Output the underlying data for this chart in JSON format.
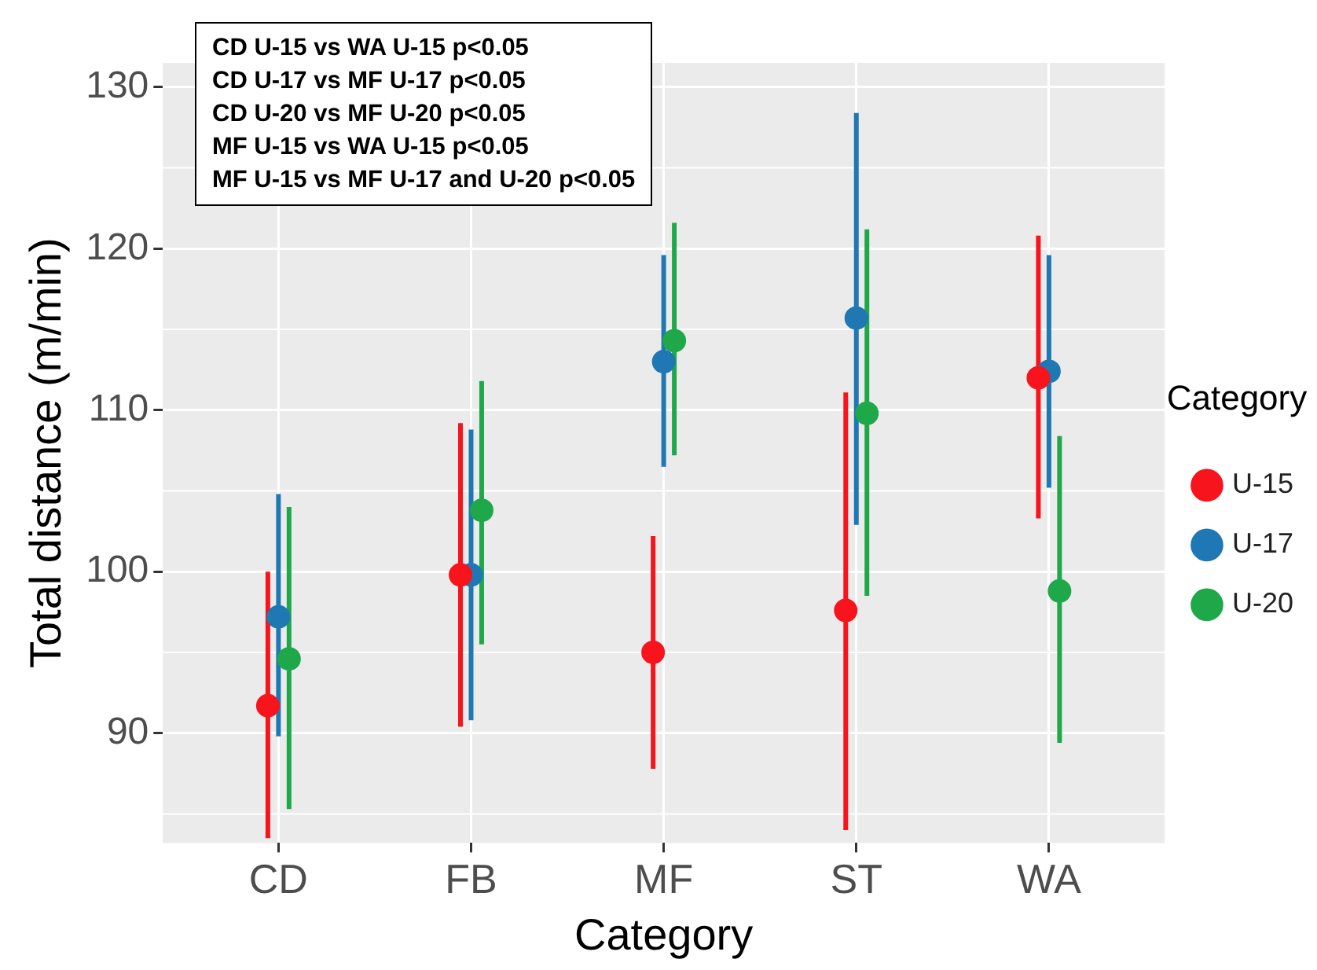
{
  "chart_data": {
    "type": "scatter",
    "xlabel": "Category",
    "ylabel": "Total distance (m/min)",
    "legend_title": "Category",
    "categories": [
      "CD",
      "FB",
      "MF",
      "ST",
      "WA"
    ],
    "series": [
      {
        "name": "U-15",
        "color": "#f8141c",
        "values": [
          91.7,
          99.8,
          95.0,
          97.6,
          112.0
        ],
        "errors": [
          [
            83.5,
            100.0
          ],
          [
            90.4,
            109.2
          ],
          [
            87.8,
            102.2
          ],
          [
            84.0,
            111.1
          ],
          [
            103.3,
            120.8
          ]
        ]
      },
      {
        "name": "U-17",
        "color": "#1f78b4",
        "values": [
          97.2,
          99.8,
          113.0,
          115.7,
          112.4
        ],
        "errors": [
          [
            89.8,
            104.8
          ],
          [
            90.8,
            108.8
          ],
          [
            106.5,
            119.6
          ],
          [
            102.9,
            128.4
          ],
          [
            105.2,
            119.6
          ]
        ]
      },
      {
        "name": "U-20",
        "color": "#1fa84a",
        "values": [
          94.6,
          103.8,
          114.3,
          109.8,
          98.8
        ],
        "errors": [
          [
            85.3,
            104.0
          ],
          [
            95.5,
            111.8
          ],
          [
            107.2,
            121.6
          ],
          [
            98.5,
            121.2
          ],
          [
            89.4,
            108.4
          ]
        ]
      }
    ],
    "ylim": [
      83.2,
      131.5
    ],
    "yticks": [
      90,
      100,
      110,
      120,
      130
    ],
    "grid": true,
    "legend": "right",
    "marker": "circle",
    "annotations": [
      "CD U-15 vs WA U-15 p<0.05",
      "CD U-17 vs MF U-17 p<0.05",
      "CD U-20 vs MF U-20 p<0.05",
      "MF U-15 vs WA U-15 p<0.05",
      "MF U-15 vs MF U-17 and U-20 p<0.05"
    ]
  }
}
